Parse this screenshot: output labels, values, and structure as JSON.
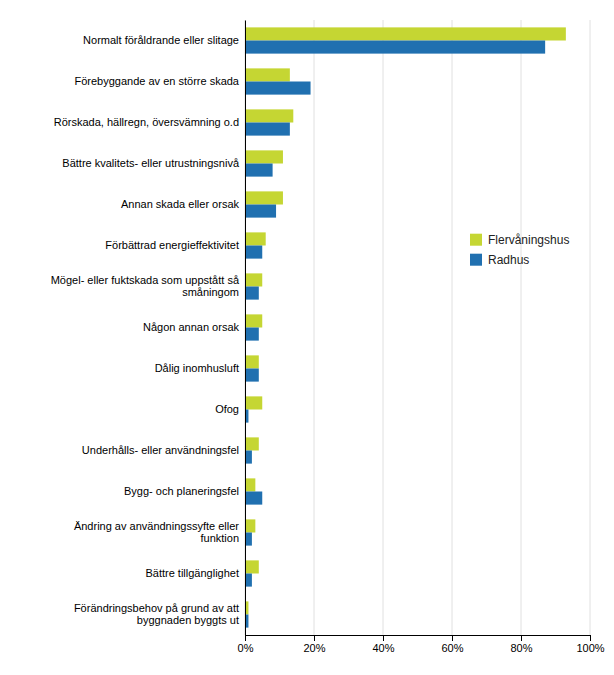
{
  "chart_data": {
    "type": "bar",
    "orientation": "horizontal",
    "categories": [
      "Normalt föråldrande eller slitage",
      "Förebyggande av en större skada",
      "Rörskada, hällregn, översvämning o.d",
      "Bättre kvalitets- eller utrustningsnivå",
      "Annan skada eller orsak",
      "Förbättrad energieffektivitet",
      "Mögel- eller fuktskada som uppstått så\nsmåningom",
      "Någon annan orsak",
      "Dålig inomhusluft",
      "Ofog",
      "Underhålls- eller användningsfel",
      "Bygg- och planeringsfel",
      "Ändring av användningssyfte eller\nfunktion",
      "Bättre tillgänglighet",
      "Förändringsbehov på grund av att\nbyggnaden byggts ut"
    ],
    "series": [
      {
        "name": "Flervåningshus",
        "color": "#c5d633",
        "values": [
          93,
          13,
          14,
          11,
          11,
          6,
          5,
          5,
          4,
          5,
          4,
          3,
          3,
          4,
          1
        ]
      },
      {
        "name": "Radhus",
        "color": "#2070b0",
        "values": [
          87,
          19,
          13,
          8,
          9,
          5,
          4,
          4,
          4,
          1,
          2,
          5,
          2,
          2,
          1
        ]
      }
    ],
    "xlim": [
      0,
      100
    ],
    "xticks": [
      {
        "value": 0,
        "label": "0%"
      },
      {
        "value": 20,
        "label": "20%"
      },
      {
        "value": 40,
        "label": "40%"
      },
      {
        "value": 60,
        "label": "60%"
      },
      {
        "value": 80,
        "label": "80%"
      },
      {
        "value": 100,
        "label": "100%"
      }
    ],
    "grid": true,
    "legend": "right"
  }
}
